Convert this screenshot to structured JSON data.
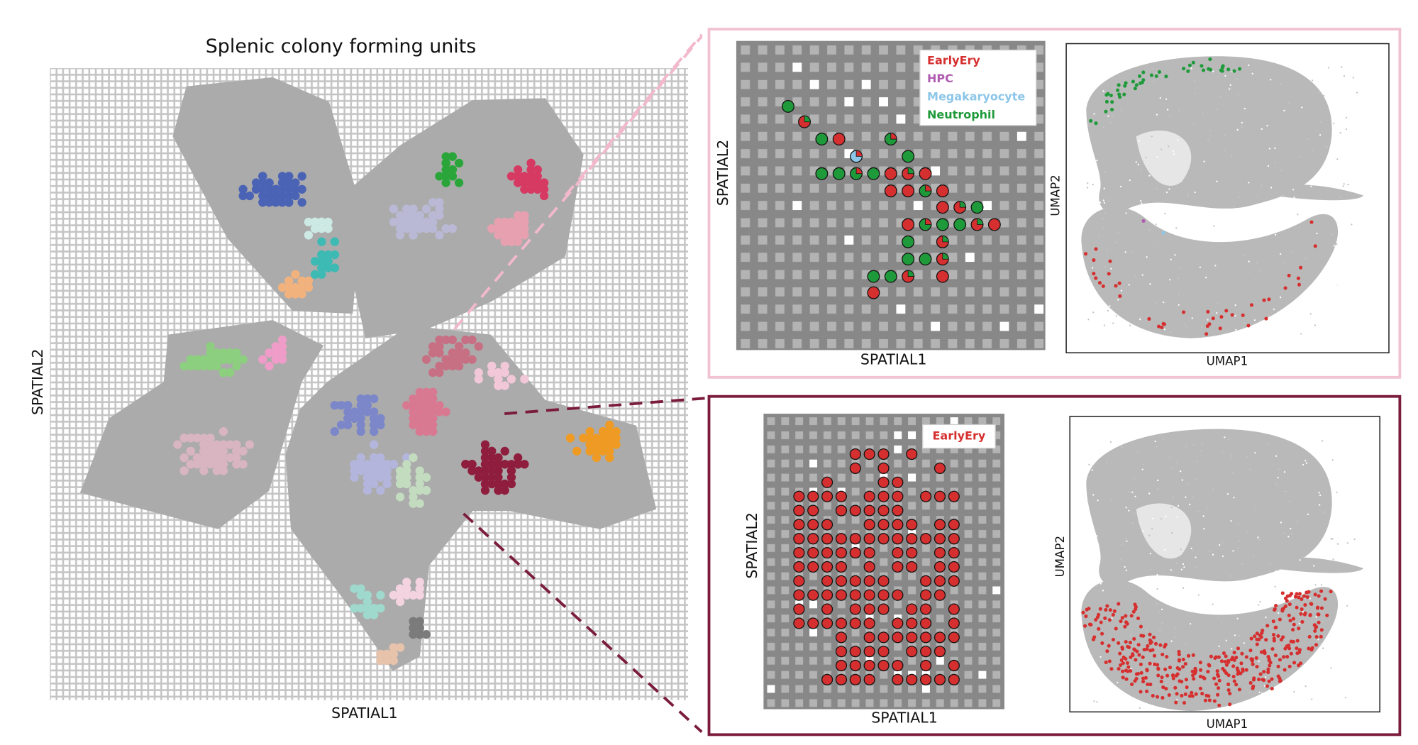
{
  "title": "Splenic colony forming units",
  "main": {
    "x_label": "SPATIAL1",
    "y_label": "SPATIAL2"
  },
  "top_panel": {
    "spatial": {
      "x_label": "SPATIAL1",
      "y_label": "SPATIAL2"
    },
    "legend": [
      "EarlyEry",
      "HPC",
      "Megakaryocyte",
      "Neutrophil"
    ],
    "umap": {
      "x_label": "UMAP1",
      "y_label": "UMAP2"
    }
  },
  "bottom_panel": {
    "spatial": {
      "x_label": "SPATIAL1",
      "y_label": "SPATIAL2"
    },
    "legend": [
      "EarlyEry"
    ],
    "umap": {
      "x_label": "UMAP1",
      "y_label": "UMAP2"
    }
  }
}
